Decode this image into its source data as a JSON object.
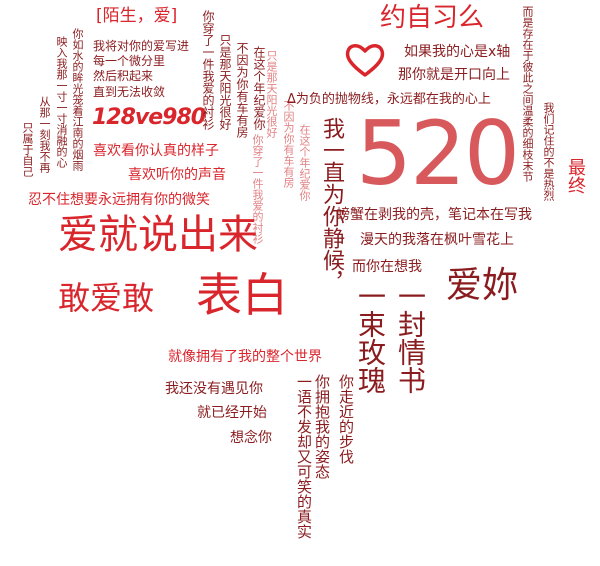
{
  "colors": {
    "red": "#d9262c",
    "dark_red": "#8a1c1f",
    "mid_red": "#b8242a",
    "pink": "#d8595c"
  },
  "icons": {
    "heart": "heart-outline-icon"
  },
  "phrases": {
    "stranger_love": "[陌生，爱]",
    "me_to_you": "我将对你的爱写进",
    "every_minute": "每一个微分里",
    "integrate": "然后积起来",
    "until_diverge": "直到无法收敛",
    "code": "128ve980",
    "like_seriously": "喜欢看你认真的样子",
    "like_voice": "喜欢听你的声音",
    "cant_help": "忍不住想要永远拥有你的微笑",
    "say_love": "爱就说出来",
    "dare_confess_1": "敢爱敢",
    "dare_confess_2": "表白",
    "like_having_world": "就像拥有了我的整个世界",
    "not_met_yet": "我还没有遇见你",
    "already_started": "就已经开始",
    "miss_you": "想念你",
    "promise": "约自习么",
    "if_heart_axis": "如果我的心是x轴",
    "you_are_parabola_open": "那你就是开口向上",
    "delta_parabola": "Δ为负的抛物线，永远都在我的心上",
    "number_520": "520",
    "crab_shell": "螃蟹在剥我的壳，笔记本在写我",
    "sky_falling": "漫天的我落在枫叶雪花上",
    "thinking_of_me": "而你在想我",
    "love_you": "爱妳",
    "v_finally": "最终",
    "v_exist": "而是存在于彼此之间温柔的细枝末节",
    "v_remember": "我们记住的不是热烈",
    "v_waiting": "我一直为你静候，",
    "v_love_letter": "一封情书",
    "v_roses": "一束玫瑰",
    "v_walk_to_you": "你走近的步伐",
    "v_hold_me": "你拥抱我的姿态",
    "v_wordless": "一语不发却又可笑的真实",
    "v_like_water": "你如水的眸光笼着江南的烟雨",
    "v_into_me": "映入我那一寸一寸消融的心",
    "v_from_then": "从那一刻我不再",
    "v_only_self": "只属于自己",
    "v_wore_1": "你穿了一件我爱的衬衫",
    "v_only_sun_1": "只是那天阳光很好",
    "v_not_because": "不因为你有车有房",
    "v_in_this_age": "在这个年纪爱你",
    "v_only_sun_2": "只是那天阳光很好",
    "v_wore_2": "你穿了一件我爱的衬衫",
    "v_not_because_2": "不因为你有车有房",
    "v_in_this_age_2": "在这个年纪爱你"
  }
}
